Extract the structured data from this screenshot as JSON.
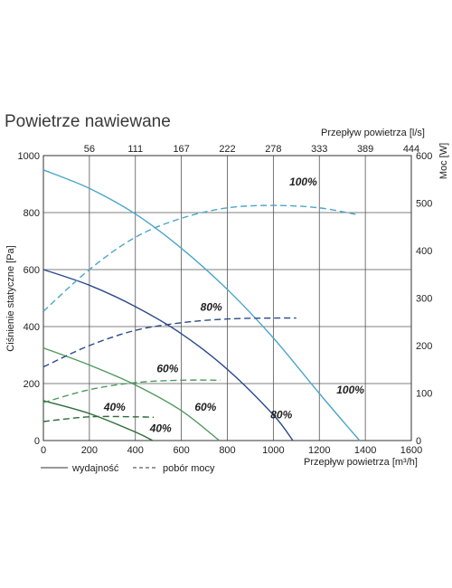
{
  "title": "Powietrze nawiewane",
  "legend": {
    "solid_label": "wydajność",
    "dashed_label": "pobór mocy"
  },
  "chart_data": {
    "type": "line",
    "xlabel": "Przepływ powietrza [m³/h]",
    "x_top_label": "Przepływ powietrza [l/s]",
    "ylabel_left": "Ciśnienie statyczne [Pa]",
    "ylabel_right": "Moc [W]",
    "xlim": [
      0,
      1600
    ],
    "ylim_left": [
      0,
      1000
    ],
    "ylim_right": [
      0,
      600
    ],
    "grid": true,
    "x_ticks": [
      0,
      200,
      400,
      600,
      800,
      1000,
      1200,
      1400,
      1600
    ],
    "x_tick_labels": [
      "0",
      "200",
      "400",
      "600",
      "800",
      "1000",
      "1200",
      "1400",
      "1600"
    ],
    "y_left_ticks": [
      0,
      200,
      400,
      600,
      800,
      1000
    ],
    "y_left_tick_labels": [
      "0",
      "200",
      "400",
      "600",
      "800",
      "1000"
    ],
    "y_right_ticks": [
      0,
      100,
      200,
      300,
      400,
      500,
      600
    ],
    "y_right_tick_labels": [
      "0",
      "100",
      "200",
      "300",
      "400",
      "500",
      "600"
    ],
    "x_top_ticks": [
      200,
      400,
      600,
      800,
      1000,
      1200,
      1400,
      1600
    ],
    "x_top_tick_labels": [
      "56",
      "111",
      "167",
      "222",
      "278",
      "333",
      "389",
      "444"
    ],
    "series": [
      {
        "label": "100%",
        "kind": "pressure",
        "color": "#4aa6c9",
        "x": [
          0,
          200,
          400,
          600,
          800,
          1000,
          1200,
          1375
        ],
        "y": [
          950,
          885,
          795,
          675,
          530,
          360,
          165,
          0
        ]
      },
      {
        "label": "80%",
        "kind": "pressure",
        "color": "#2b4a8b",
        "x": [
          0,
          200,
          400,
          600,
          800,
          1000,
          1085
        ],
        "y": [
          600,
          545,
          470,
          375,
          250,
          90,
          0
        ]
      },
      {
        "label": "60%",
        "kind": "pressure",
        "color": "#4f9a5e",
        "x": [
          0,
          200,
          400,
          600,
          765
        ],
        "y": [
          325,
          265,
          195,
          105,
          0
        ]
      },
      {
        "label": "40%",
        "kind": "pressure",
        "color": "#2e6b3a",
        "x": [
          0,
          200,
          400,
          475
        ],
        "y": [
          140,
          95,
          30,
          0
        ]
      },
      {
        "label": "100%",
        "kind": "power",
        "color": "#4aa6c9",
        "x": [
          0,
          200,
          400,
          600,
          800,
          1000,
          1200,
          1370
        ],
        "y": [
          272,
          360,
          428,
          468,
          490,
          495,
          490,
          475
        ]
      },
      {
        "label": "80%",
        "kind": "power",
        "color": "#2b4a8b",
        "x": [
          0,
          200,
          400,
          600,
          800,
          1000,
          1100
        ],
        "y": [
          155,
          200,
          232,
          248,
          256,
          258,
          258
        ]
      },
      {
        "label": "60%",
        "kind": "power",
        "color": "#4f9a5e",
        "x": [
          0,
          200,
          400,
          600,
          770
        ],
        "y": [
          80,
          107,
          122,
          127,
          127
        ]
      },
      {
        "label": "40%",
        "kind": "power",
        "color": "#2e6b3a",
        "x": [
          0,
          200,
          400,
          480
        ],
        "y": [
          40,
          50,
          50,
          49
        ]
      }
    ],
    "annotations": [
      {
        "text": "100%",
        "x": 1130,
        "y_left": 895
      },
      {
        "text": "80%",
        "x": 730,
        "y_left": 455
      },
      {
        "text": "60%",
        "x": 540,
        "y_left": 240
      },
      {
        "text": "40%",
        "x": 310,
        "y_left": 105
      },
      {
        "text": "100%",
        "x": 1335,
        "y_left": 165
      },
      {
        "text": "80%",
        "x": 1035,
        "y_left": 78
      },
      {
        "text": "60%",
        "x": 705,
        "y_left": 105
      },
      {
        "text": "40%",
        "x": 510,
        "y_left": 30
      }
    ]
  }
}
